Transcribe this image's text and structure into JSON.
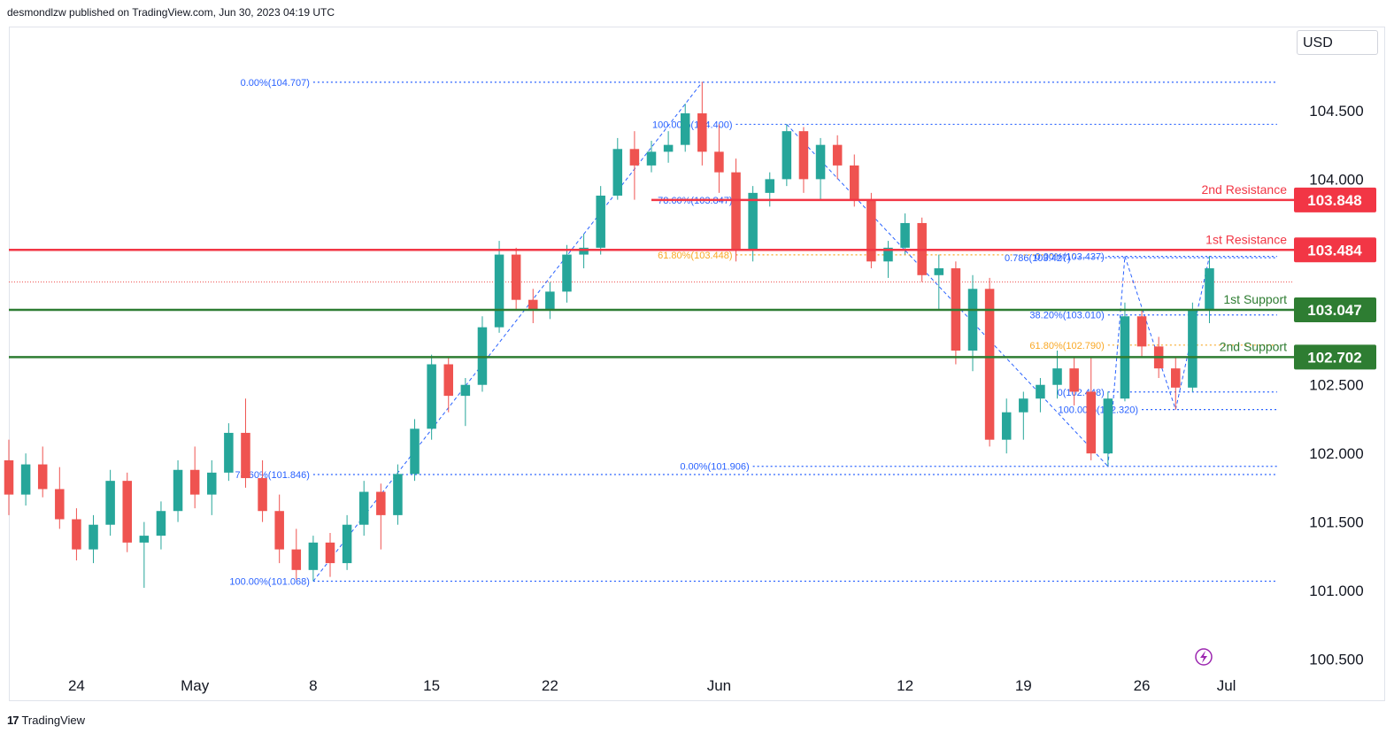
{
  "header": {
    "text": "desmondlzw published on TradingView.com, Jun 30, 2023 04:19 UTC"
  },
  "currency": {
    "label": "USD"
  },
  "footer": {
    "brand": "TradingView"
  },
  "colors": {
    "up": "#26a69a",
    "down": "#ef5350",
    "resistance": "#f23645",
    "support": "#2e7d32",
    "fib": "#2962ff",
    "fib_gold": "#f9a825",
    "axis_text": "#131722"
  },
  "chart_data": {
    "type": "candlestick",
    "title": "",
    "xlabel": "",
    "ylabel": "",
    "ylim": [
      100.4,
      105.1
    ],
    "y_ticks": [
      "104.500",
      "104.000",
      "102.500",
      "102.000",
      "101.500",
      "101.000",
      "100.500"
    ],
    "x_ticks": [
      {
        "label": "24",
        "date": "2023-04-24"
      },
      {
        "label": "May",
        "date": "2023-05-01"
      },
      {
        "label": "8",
        "date": "2023-05-08"
      },
      {
        "label": "15",
        "date": "2023-05-15"
      },
      {
        "label": "22",
        "date": "2023-05-22"
      },
      {
        "label": "Jun",
        "date": "2023-06-01"
      },
      {
        "label": "12",
        "date": "2023-06-12"
      },
      {
        "label": "19",
        "date": "2023-06-19"
      },
      {
        "label": "26",
        "date": "2023-06-26"
      },
      {
        "label": "Jul",
        "date": "2023-07-01"
      }
    ],
    "x_range": [
      "2023-04-20",
      "2023-07-05"
    ],
    "last_price": 103.25,
    "levels": [
      {
        "name": "2nd Resistance",
        "value": 103.848,
        "label": "103.848",
        "kind": "resistance",
        "start": "2023-05-28"
      },
      {
        "name": "1st Resistance",
        "value": 103.484,
        "label": "103.484",
        "kind": "resistance",
        "start": "2023-04-20"
      },
      {
        "name": "1st Support",
        "value": 103.047,
        "label": "103.047",
        "kind": "support",
        "start": "2023-04-20"
      },
      {
        "name": "2nd Support",
        "value": 102.702,
        "label": "102.702",
        "kind": "support",
        "start": "2023-04-20"
      }
    ],
    "fib_lines": [
      {
        "text": "0.00%(104.707)",
        "value": 104.707,
        "start": "2023-05-08",
        "end": "2023-07-04",
        "style": "blue"
      },
      {
        "text": "100.00%(104.400)",
        "value": 104.4,
        "start": "2023-06-02",
        "end": "2023-07-04",
        "style": "blue"
      },
      {
        "text": "78.60%(103.847)",
        "value": 103.847,
        "start": "2023-06-02",
        "end": "2023-07-04",
        "style": "blue"
      },
      {
        "text": "61.80%(103.448)",
        "value": 103.448,
        "start": "2023-06-02",
        "end": "2023-06-22",
        "style": "gold"
      },
      {
        "text": "0.786(103.427)",
        "value": 103.427,
        "start": "2023-06-22",
        "end": "2023-07-04",
        "style": "blue"
      },
      {
        "text": "0.00%(103.437)",
        "value": 103.437,
        "start": "2023-06-24",
        "end": "2023-07-04",
        "style": "blue"
      },
      {
        "text": "38.20%(103.010)",
        "value": 103.01,
        "start": "2023-06-24",
        "end": "2023-07-04",
        "style": "blue"
      },
      {
        "text": "61.80%(102.790)",
        "value": 102.79,
        "start": "2023-06-24",
        "end": "2023-07-04",
        "style": "gold"
      },
      {
        "text": "0(102.448)",
        "value": 102.448,
        "start": "2023-06-24",
        "end": "2023-07-04",
        "style": "blue"
      },
      {
        "text": "100.00%(102.320)",
        "value": 102.32,
        "start": "2023-06-26",
        "end": "2023-07-04",
        "style": "blue"
      },
      {
        "text": "0.00%(101.906)",
        "value": 101.906,
        "start": "2023-06-03",
        "end": "2023-07-04",
        "style": "blue"
      },
      {
        "text": "78.60%(101.846)",
        "value": 101.846,
        "start": "2023-05-08",
        "end": "2023-07-04",
        "style": "blue"
      },
      {
        "text": "100.00%(101.068)",
        "value": 101.068,
        "start": "2023-05-08",
        "end": "2023-07-04",
        "style": "blue"
      }
    ],
    "candles": [
      {
        "d": "2023-04-20",
        "o": 101.95,
        "h": 102.1,
        "l": 101.55,
        "c": 101.7
      },
      {
        "d": "2023-04-21",
        "o": 101.7,
        "h": 102.0,
        "l": 101.62,
        "c": 101.92
      },
      {
        "d": "2023-04-22",
        "o": 101.92,
        "h": 102.05,
        "l": 101.68,
        "c": 101.74
      },
      {
        "d": "2023-04-23",
        "o": 101.74,
        "h": 101.9,
        "l": 101.45,
        "c": 101.52
      },
      {
        "d": "2023-04-24",
        "o": 101.52,
        "h": 101.6,
        "l": 101.22,
        "c": 101.3
      },
      {
        "d": "2023-04-25",
        "o": 101.3,
        "h": 101.55,
        "l": 101.2,
        "c": 101.48
      },
      {
        "d": "2023-04-26",
        "o": 101.48,
        "h": 101.88,
        "l": 101.4,
        "c": 101.8
      },
      {
        "d": "2023-04-27",
        "o": 101.8,
        "h": 101.86,
        "l": 101.28,
        "c": 101.35
      },
      {
        "d": "2023-04-28",
        "o": 101.35,
        "h": 101.5,
        "l": 101.02,
        "c": 101.4
      },
      {
        "d": "2023-04-29",
        "o": 101.4,
        "h": 101.65,
        "l": 101.3,
        "c": 101.58
      },
      {
        "d": "2023-04-30",
        "o": 101.58,
        "h": 101.95,
        "l": 101.5,
        "c": 101.88
      },
      {
        "d": "2023-05-01",
        "o": 101.88,
        "h": 102.05,
        "l": 101.6,
        "c": 101.7
      },
      {
        "d": "2023-05-02",
        "o": 101.7,
        "h": 101.95,
        "l": 101.55,
        "c": 101.86
      },
      {
        "d": "2023-05-03",
        "o": 101.86,
        "h": 102.22,
        "l": 101.8,
        "c": 102.15
      },
      {
        "d": "2023-05-04",
        "o": 102.15,
        "h": 102.4,
        "l": 101.75,
        "c": 101.82
      },
      {
        "d": "2023-05-05",
        "o": 101.82,
        "h": 101.95,
        "l": 101.5,
        "c": 101.58
      },
      {
        "d": "2023-05-06",
        "o": 101.58,
        "h": 101.7,
        "l": 101.2,
        "c": 101.3
      },
      {
        "d": "2023-05-07",
        "o": 101.3,
        "h": 101.45,
        "l": 101.08,
        "c": 101.15
      },
      {
        "d": "2023-05-08",
        "o": 101.15,
        "h": 101.4,
        "l": 101.07,
        "c": 101.35
      },
      {
        "d": "2023-05-09",
        "o": 101.35,
        "h": 101.42,
        "l": 101.1,
        "c": 101.2
      },
      {
        "d": "2023-05-10",
        "o": 101.2,
        "h": 101.55,
        "l": 101.15,
        "c": 101.48
      },
      {
        "d": "2023-05-11",
        "o": 101.48,
        "h": 101.8,
        "l": 101.4,
        "c": 101.72
      },
      {
        "d": "2023-05-12",
        "o": 101.72,
        "h": 101.78,
        "l": 101.3,
        "c": 101.55
      },
      {
        "d": "2023-05-13",
        "o": 101.55,
        "h": 101.92,
        "l": 101.48,
        "c": 101.85
      },
      {
        "d": "2023-05-14",
        "o": 101.85,
        "h": 102.25,
        "l": 101.8,
        "c": 102.18
      },
      {
        "d": "2023-05-15",
        "o": 102.18,
        "h": 102.72,
        "l": 102.1,
        "c": 102.65
      },
      {
        "d": "2023-05-16",
        "o": 102.65,
        "h": 102.7,
        "l": 102.3,
        "c": 102.42
      },
      {
        "d": "2023-05-17",
        "o": 102.42,
        "h": 102.55,
        "l": 102.2,
        "c": 102.5
      },
      {
        "d": "2023-05-18",
        "o": 102.5,
        "h": 103.0,
        "l": 102.45,
        "c": 102.92
      },
      {
        "d": "2023-05-19",
        "o": 102.92,
        "h": 103.55,
        "l": 102.88,
        "c": 103.45
      },
      {
        "d": "2023-05-20",
        "o": 103.45,
        "h": 103.5,
        "l": 103.05,
        "c": 103.12
      },
      {
        "d": "2023-05-21",
        "o": 103.12,
        "h": 103.2,
        "l": 102.95,
        "c": 103.05
      },
      {
        "d": "2023-05-22",
        "o": 103.05,
        "h": 103.25,
        "l": 102.98,
        "c": 103.18
      },
      {
        "d": "2023-05-23",
        "o": 103.18,
        "h": 103.52,
        "l": 103.1,
        "c": 103.45
      },
      {
        "d": "2023-05-24",
        "o": 103.45,
        "h": 103.6,
        "l": 103.35,
        "c": 103.5
      },
      {
        "d": "2023-05-25",
        "o": 103.5,
        "h": 103.95,
        "l": 103.45,
        "c": 103.88
      },
      {
        "d": "2023-05-26",
        "o": 103.88,
        "h": 104.3,
        "l": 103.85,
        "c": 104.22
      },
      {
        "d": "2023-05-27",
        "o": 104.22,
        "h": 104.35,
        "l": 103.85,
        "c": 104.1
      },
      {
        "d": "2023-05-28",
        "o": 104.1,
        "h": 104.28,
        "l": 104.05,
        "c": 104.2
      },
      {
        "d": "2023-05-29",
        "o": 104.2,
        "h": 104.35,
        "l": 104.12,
        "c": 104.25
      },
      {
        "d": "2023-05-30",
        "o": 104.25,
        "h": 104.55,
        "l": 104.2,
        "c": 104.48
      },
      {
        "d": "2023-05-31",
        "o": 104.48,
        "h": 104.71,
        "l": 104.1,
        "c": 104.2
      },
      {
        "d": "2023-06-01",
        "o": 104.2,
        "h": 104.4,
        "l": 103.9,
        "c": 104.05
      },
      {
        "d": "2023-06-02",
        "o": 104.05,
        "h": 104.15,
        "l": 103.4,
        "c": 103.48
      },
      {
        "d": "2023-06-03",
        "o": 103.48,
        "h": 103.95,
        "l": 103.4,
        "c": 103.9
      },
      {
        "d": "2023-06-04",
        "o": 103.9,
        "h": 104.05,
        "l": 103.8,
        "c": 104.0
      },
      {
        "d": "2023-06-05",
        "o": 104.0,
        "h": 104.4,
        "l": 103.95,
        "c": 104.35
      },
      {
        "d": "2023-06-06",
        "o": 104.35,
        "h": 104.38,
        "l": 103.9,
        "c": 104.0
      },
      {
        "d": "2023-06-07",
        "o": 104.0,
        "h": 104.3,
        "l": 103.85,
        "c": 104.25
      },
      {
        "d": "2023-06-08",
        "o": 104.25,
        "h": 104.32,
        "l": 104.0,
        "c": 104.1
      },
      {
        "d": "2023-06-09",
        "o": 104.1,
        "h": 104.18,
        "l": 103.8,
        "c": 103.85
      },
      {
        "d": "2023-06-10",
        "o": 103.85,
        "h": 103.9,
        "l": 103.35,
        "c": 103.4
      },
      {
        "d": "2023-06-11",
        "o": 103.4,
        "h": 103.55,
        "l": 103.28,
        "c": 103.5
      },
      {
        "d": "2023-06-12",
        "o": 103.5,
        "h": 103.75,
        "l": 103.45,
        "c": 103.68
      },
      {
        "d": "2023-06-13",
        "o": 103.68,
        "h": 103.72,
        "l": 103.25,
        "c": 103.3
      },
      {
        "d": "2023-06-14",
        "o": 103.3,
        "h": 103.45,
        "l": 103.05,
        "c": 103.35
      },
      {
        "d": "2023-06-15",
        "o": 103.35,
        "h": 103.4,
        "l": 102.65,
        "c": 102.75
      },
      {
        "d": "2023-06-16",
        "o": 102.75,
        "h": 103.3,
        "l": 102.6,
        "c": 103.2
      },
      {
        "d": "2023-06-17",
        "o": 103.2,
        "h": 103.28,
        "l": 102.05,
        "c": 102.1
      },
      {
        "d": "2023-06-18",
        "o": 102.1,
        "h": 102.4,
        "l": 102.0,
        "c": 102.3
      },
      {
        "d": "2023-06-19",
        "o": 102.3,
        "h": 102.45,
        "l": 102.1,
        "c": 102.4
      },
      {
        "d": "2023-06-20",
        "o": 102.4,
        "h": 102.55,
        "l": 102.3,
        "c": 102.5
      },
      {
        "d": "2023-06-21",
        "o": 102.5,
        "h": 102.75,
        "l": 102.4,
        "c": 102.62
      },
      {
        "d": "2023-06-22",
        "o": 102.62,
        "h": 102.7,
        "l": 102.35,
        "c": 102.45
      },
      {
        "d": "2023-06-23",
        "o": 102.45,
        "h": 102.7,
        "l": 101.95,
        "c": 102.0
      },
      {
        "d": "2023-06-24",
        "o": 102.0,
        "h": 102.45,
        "l": 101.91,
        "c": 102.4
      },
      {
        "d": "2023-06-25",
        "o": 102.4,
        "h": 103.1,
        "l": 102.38,
        "c": 103.0
      },
      {
        "d": "2023-06-26",
        "o": 103.0,
        "h": 103.05,
        "l": 102.7,
        "c": 102.78
      },
      {
        "d": "2023-06-27",
        "o": 102.78,
        "h": 102.85,
        "l": 102.55,
        "c": 102.62
      },
      {
        "d": "2023-06-28",
        "o": 102.62,
        "h": 102.7,
        "l": 102.32,
        "c": 102.48
      },
      {
        "d": "2023-06-29",
        "o": 102.48,
        "h": 103.1,
        "l": 102.45,
        "c": 103.05
      },
      {
        "d": "2023-06-30",
        "o": 103.05,
        "h": 103.44,
        "l": 102.95,
        "c": 103.35
      }
    ]
  }
}
